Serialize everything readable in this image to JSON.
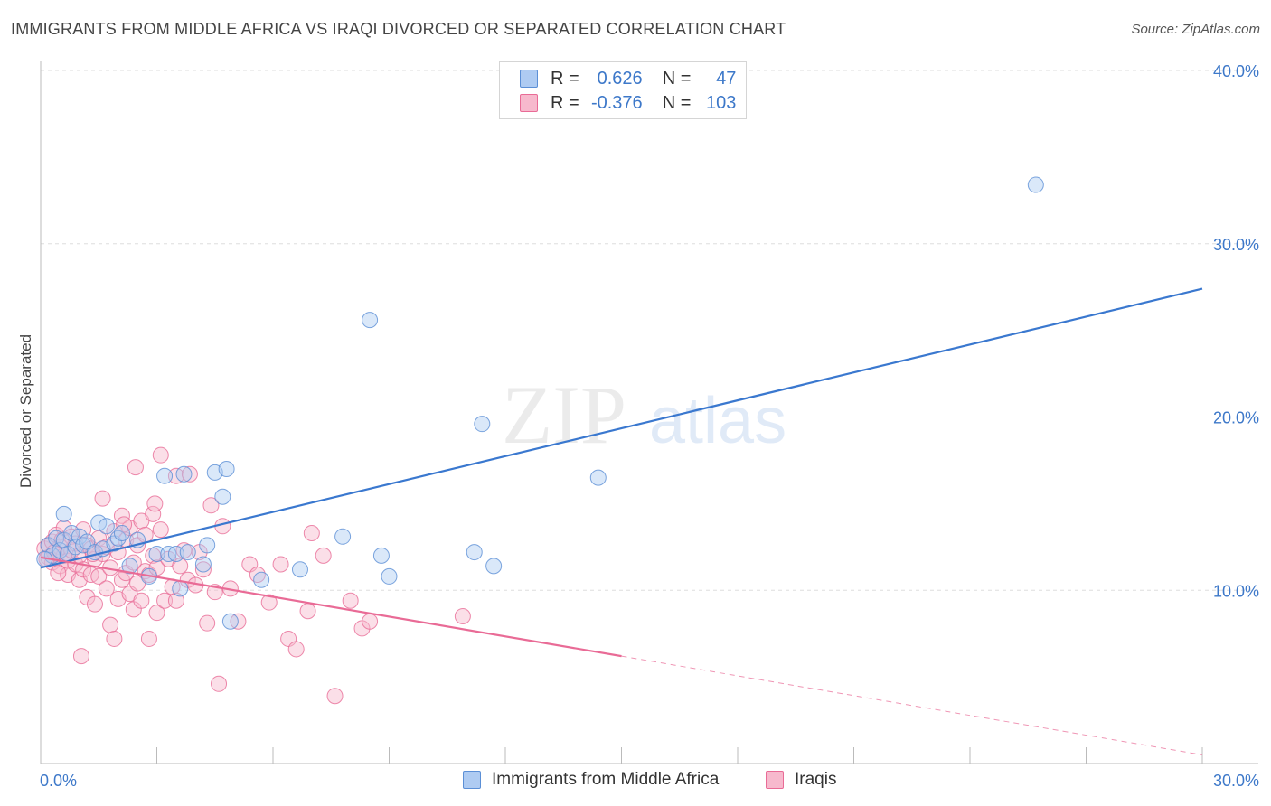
{
  "title": "IMMIGRANTS FROM MIDDLE AFRICA VS IRAQI DIVORCED OR SEPARATED CORRELATION CHART",
  "source": "Source: ZipAtlas.com",
  "watermark": {
    "zip": "ZIP",
    "atlas": "atlas"
  },
  "legend": {
    "row1": {
      "r_label": "R =",
      "r_value": "0.626",
      "n_label": "N =",
      "n_value": "47"
    },
    "row2": {
      "r_label": "R =",
      "r_value": "-0.376",
      "n_label": "N =",
      "n_value": "103"
    }
  },
  "colors": {
    "blue": "#5b8fd6",
    "blue_fill": "#aecbf2",
    "pink": "#e96b96",
    "pink_fill": "#f7b9cd",
    "axis_text": "#3d78c9"
  },
  "chart_data": {
    "type": "scatter",
    "title": "IMMIGRANTS FROM MIDDLE AFRICA VS IRAQI DIVORCED OR SEPARATED CORRELATION CHART",
    "xlabel": "",
    "ylabel": "Divorced or Separated",
    "xlim": [
      0,
      30
    ],
    "ylim": [
      0,
      40
    ],
    "x_tick_labels": [
      "0.0%",
      "30.0%"
    ],
    "y_ticks": [
      10,
      20,
      30,
      40
    ],
    "y_tick_labels": [
      "10.0%",
      "20.0%",
      "30.0%",
      "40.0%"
    ],
    "series": [
      {
        "name": "Immigrants from Middle Africa",
        "color": "blue",
        "r": 0.626,
        "n": 47,
        "trend": {
          "x": [
            0,
            30
          ],
          "y": [
            11.3,
            27.4
          ],
          "dashed_from": null
        },
        "points": [
          [
            0.2,
            12.6
          ],
          [
            0.3,
            12.0
          ],
          [
            0.4,
            13.0
          ],
          [
            0.5,
            12.3
          ],
          [
            0.6,
            12.9
          ],
          [
            0.7,
            12.1
          ],
          [
            0.8,
            13.3
          ],
          [
            0.9,
            12.5
          ],
          [
            1.0,
            13.1
          ],
          [
            1.1,
            12.6
          ],
          [
            1.2,
            12.8
          ],
          [
            1.4,
            12.2
          ],
          [
            1.5,
            13.9
          ],
          [
            1.6,
            12.4
          ],
          [
            1.7,
            13.7
          ],
          [
            1.9,
            12.7
          ],
          [
            2.0,
            13.0
          ],
          [
            2.1,
            13.3
          ],
          [
            2.3,
            11.4
          ],
          [
            2.5,
            12.9
          ],
          [
            2.8,
            10.8
          ],
          [
            3.0,
            12.1
          ],
          [
            3.2,
            16.6
          ],
          [
            3.3,
            12.1
          ],
          [
            3.5,
            12.1
          ],
          [
            3.6,
            10.1
          ],
          [
            3.7,
            16.7
          ],
          [
            3.8,
            12.2
          ],
          [
            4.2,
            11.5
          ],
          [
            4.3,
            12.6
          ],
          [
            4.5,
            16.8
          ],
          [
            4.7,
            15.4
          ],
          [
            4.8,
            17.0
          ],
          [
            4.9,
            8.2
          ],
          [
            5.7,
            10.6
          ],
          [
            6.7,
            11.2
          ],
          [
            7.8,
            13.1
          ],
          [
            8.5,
            25.6
          ],
          [
            8.8,
            12.0
          ],
          [
            9.0,
            10.8
          ],
          [
            11.2,
            12.2
          ],
          [
            11.4,
            19.6
          ],
          [
            11.7,
            11.4
          ],
          [
            14.4,
            16.5
          ],
          [
            25.7,
            33.4
          ],
          [
            0.6,
            14.4
          ],
          [
            0.1,
            11.8
          ]
        ]
      },
      {
        "name": "Iraqis",
        "color": "pink",
        "r": -0.376,
        "n": 103,
        "trend": {
          "x": [
            0,
            30
          ],
          "y": [
            11.9,
            0.5
          ],
          "dashed_from": 15
        },
        "points": [
          [
            0.1,
            12.4
          ],
          [
            0.2,
            11.9
          ],
          [
            0.2,
            12.6
          ],
          [
            0.3,
            11.6
          ],
          [
            0.3,
            12.8
          ],
          [
            0.4,
            12.1
          ],
          [
            0.4,
            13.2
          ],
          [
            0.5,
            11.4
          ],
          [
            0.5,
            12.5
          ],
          [
            0.6,
            13.6
          ],
          [
            0.6,
            12.0
          ],
          [
            0.7,
            11.7
          ],
          [
            0.7,
            10.9
          ],
          [
            0.8,
            12.3
          ],
          [
            0.8,
            13.1
          ],
          [
            0.9,
            11.5
          ],
          [
            0.9,
            12.7
          ],
          [
            1.0,
            10.6
          ],
          [
            1.0,
            12.0
          ],
          [
            1.1,
            13.5
          ],
          [
            1.1,
            11.2
          ],
          [
            1.2,
            12.6
          ],
          [
            1.2,
            9.6
          ],
          [
            1.3,
            10.9
          ],
          [
            1.3,
            12.4
          ],
          [
            1.4,
            11.8
          ],
          [
            1.4,
            9.2
          ],
          [
            1.5,
            10.8
          ],
          [
            1.5,
            13.0
          ],
          [
            1.6,
            12.1
          ],
          [
            1.6,
            15.3
          ],
          [
            1.7,
            10.1
          ],
          [
            1.7,
            12.5
          ],
          [
            1.8,
            8.0
          ],
          [
            1.8,
            11.3
          ],
          [
            1.9,
            13.4
          ],
          [
            1.9,
            7.2
          ],
          [
            2.0,
            9.5
          ],
          [
            2.0,
            12.2
          ],
          [
            2.1,
            10.6
          ],
          [
            2.1,
            14.3
          ],
          [
            2.2,
            11.0
          ],
          [
            2.2,
            12.9
          ],
          [
            2.3,
            9.8
          ],
          [
            2.3,
            13.6
          ],
          [
            2.4,
            11.6
          ],
          [
            2.4,
            8.9
          ],
          [
            2.5,
            10.4
          ],
          [
            2.5,
            12.6
          ],
          [
            2.6,
            14.0
          ],
          [
            2.6,
            9.4
          ],
          [
            2.7,
            11.1
          ],
          [
            2.7,
            13.2
          ],
          [
            2.8,
            7.2
          ],
          [
            2.8,
            10.9
          ],
          [
            2.9,
            14.4
          ],
          [
            2.9,
            12.0
          ],
          [
            3.0,
            8.7
          ],
          [
            3.0,
            11.3
          ],
          [
            3.1,
            17.8
          ],
          [
            3.1,
            13.5
          ],
          [
            3.2,
            9.4
          ],
          [
            3.3,
            11.8
          ],
          [
            3.4,
            10.2
          ],
          [
            3.5,
            9.4
          ],
          [
            3.5,
            16.6
          ],
          [
            3.6,
            11.4
          ],
          [
            3.7,
            12.3
          ],
          [
            3.8,
            10.6
          ],
          [
            4.0,
            10.3
          ],
          [
            4.1,
            12.2
          ],
          [
            4.2,
            11.2
          ],
          [
            4.3,
            8.1
          ],
          [
            4.4,
            14.9
          ],
          [
            4.5,
            9.9
          ],
          [
            4.6,
            4.6
          ],
          [
            4.7,
            13.7
          ],
          [
            4.9,
            10.1
          ],
          [
            5.1,
            8.2
          ],
          [
            5.4,
            11.5
          ],
          [
            5.6,
            10.9
          ],
          [
            5.9,
            9.3
          ],
          [
            6.2,
            11.5
          ],
          [
            6.4,
            7.2
          ],
          [
            6.6,
            6.6
          ],
          [
            6.9,
            8.8
          ],
          [
            7.0,
            13.3
          ],
          [
            7.3,
            12.0
          ],
          [
            7.6,
            3.9
          ],
          [
            8.0,
            9.4
          ],
          [
            8.3,
            7.8
          ],
          [
            8.5,
            8.2
          ],
          [
            10.9,
            8.5
          ],
          [
            0.15,
            11.8
          ],
          [
            0.35,
            12.2
          ],
          [
            0.45,
            11.0
          ],
          [
            1.05,
            6.2
          ],
          [
            2.45,
            17.1
          ],
          [
            2.95,
            15.0
          ],
          [
            3.85,
            16.7
          ],
          [
            0.55,
            12.9
          ],
          [
            1.35,
            12.1
          ],
          [
            2.15,
            13.8
          ]
        ]
      }
    ],
    "legend_position": "top-center",
    "grid": true
  },
  "bottom_legend": {
    "series1": "Immigrants from Middle Africa",
    "series2": "Iraqis"
  }
}
